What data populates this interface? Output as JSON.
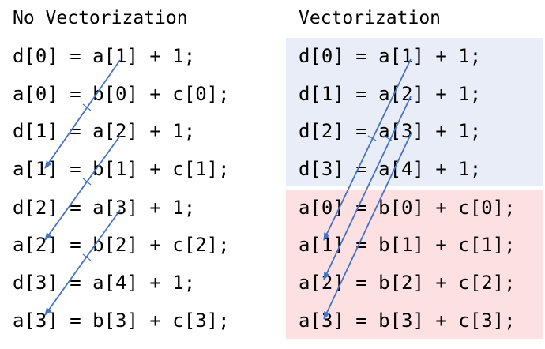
{
  "left": {
    "heading": "No Vectorization",
    "lines": [
      "d[0] = a[1] + 1;",
      "a[0] = b[0] + c[0];",
      "d[1] = a[2] + 1;",
      "a[1] = b[1] + c[1];",
      "d[2] = a[3] + 1;",
      "a[2] = b[2] + c[2];",
      "d[3] = a[4] + 1;",
      "a[3] = b[3] + c[3];"
    ]
  },
  "right": {
    "heading": "Vectorization",
    "read_group": {
      "color": "#e8edf7",
      "lines": [
        "d[0] = a[1] + 1;",
        "d[1] = a[2] + 1;",
        "d[2] = a[3] + 1;",
        "d[3] = a[4] + 1;"
      ]
    },
    "write_group": {
      "color": "#fde0e1",
      "lines": [
        "a[0] = b[0] + c[0];",
        "a[1] = b[1] + c[1];",
        "a[2] = b[2] + c[2];",
        "a[3] = b[3] + c[3];"
      ]
    }
  },
  "arrow_color": "#4472c4"
}
